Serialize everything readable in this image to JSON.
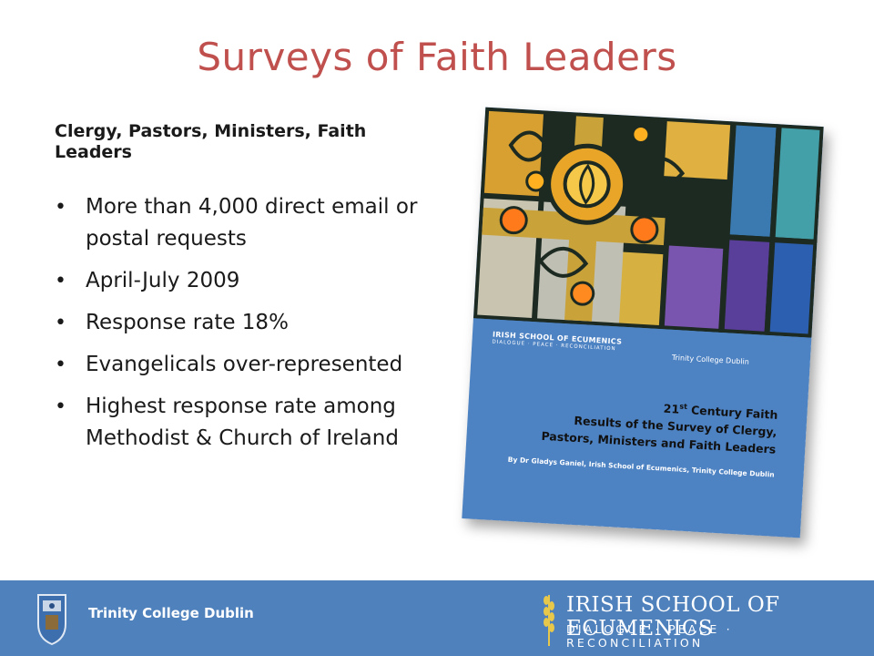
{
  "slide": {
    "title": "Surveys of Faith Leaders",
    "subheading": "Clergy, Pastors, Ministers, Faith Leaders",
    "bullets": [
      "More than 4,000 direct email or postal requests",
      "April-July 2009",
      "Response rate 18%",
      "Evangelicals over-represented",
      "Highest response rate among Methodist & Church of Ireland"
    ]
  },
  "cover": {
    "ise_name": "IRISH SCHOOL OF ECUMENICS",
    "ise_tagline": "DIALOGUE · PEACE · RECONCILIATION",
    "tcd_name": "Trinity College Dublin",
    "title_prefix": "21",
    "title_sup": "st",
    "title_rest": " Century Faith",
    "subtitle_line1": "Results of the Survey of Clergy,",
    "subtitle_line2": "Pastors, Ministers and Faith Leaders",
    "author": "By Dr Gladys Ganiel, Irish School of Ecumenics, Trinity College Dublin"
  },
  "footer": {
    "tcd_label": "Trinity College Dublin",
    "ise_name": "IRISH SCHOOL OF ECUMENICS",
    "ise_tagline": "DIALOGUE · PEACE · RECONCILIATION"
  },
  "colors": {
    "title": "#c0504d",
    "footer_bg": "#4f81bd",
    "cover_bg": "#4d82c3"
  }
}
